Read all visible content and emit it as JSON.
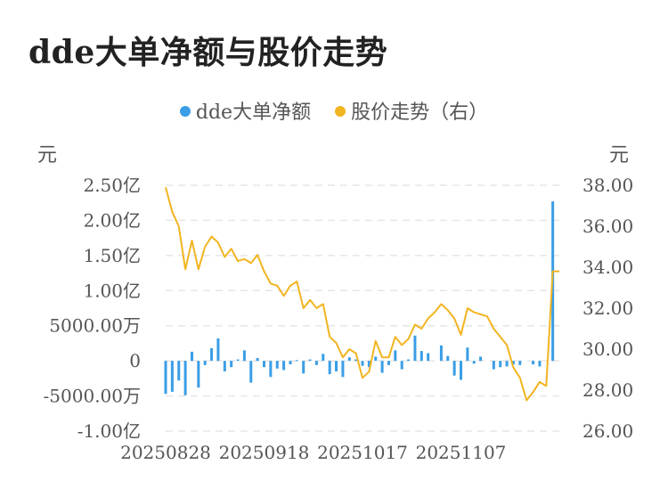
{
  "chart_data": {
    "type": "bar+line",
    "title": "dde大单净额与股价走势",
    "legend": [
      {
        "label": "dde大单净额",
        "color": "#3a9ee6"
      },
      {
        "label": "股价走势（右）",
        "color": "#f2b420"
      }
    ],
    "left_axis": {
      "unit": "元",
      "ticks": [
        "2.50亿",
        "2.00亿",
        "1.50亿",
        "1.00亿",
        "5000.00万",
        "0",
        "-5000.00万",
        "-1.00亿"
      ],
      "range_wan": [
        -10000,
        25000
      ]
    },
    "right_axis": {
      "unit": "元",
      "ticks": [
        "38.00",
        "36.00",
        "34.00",
        "32.00",
        "30.00",
        "28.00",
        "26.00"
      ],
      "range": [
        26,
        38
      ]
    },
    "x_tick_labels": [
      "20250828",
      "20250918",
      "20251017",
      "20251107"
    ],
    "x_tick_index": [
      0,
      15,
      30,
      45
    ],
    "series": [
      {
        "name": "dde大单净额",
        "kind": "bar",
        "unit": "万元",
        "values": [
          -4700,
          -4400,
          -2800,
          -4900,
          1300,
          -3800,
          -600,
          1800,
          3200,
          -1500,
          -900,
          200,
          1500,
          -3100,
          400,
          -900,
          -2300,
          -1100,
          -1300,
          -500,
          100,
          -1800,
          200,
          -600,
          1000,
          -1900,
          -1500,
          -2300,
          500,
          200,
          -700,
          -900,
          600,
          -1700,
          -600,
          1500,
          -1200,
          200,
          3600,
          1400,
          1100,
          0,
          2200,
          700,
          -2100,
          -2700,
          1900,
          -400,
          600,
          0,
          -1200,
          -900,
          -800,
          -500,
          -600,
          0,
          -500,
          -800,
          0,
          22700,
          0
        ]
      },
      {
        "name": "股价走势（右）",
        "kind": "line",
        "unit": "元",
        "values": [
          37.9,
          36.7,
          36.0,
          33.9,
          35.3,
          33.9,
          35.0,
          35.5,
          35.2,
          34.5,
          34.9,
          34.3,
          34.4,
          34.2,
          34.6,
          33.8,
          33.2,
          33.1,
          32.6,
          33.1,
          33.3,
          32.0,
          32.4,
          32.0,
          32.2,
          30.6,
          30.3,
          29.6,
          30.0,
          29.8,
          28.6,
          28.9,
          30.4,
          29.6,
          29.6,
          30.6,
          30.2,
          30.5,
          31.2,
          31.0,
          31.5,
          31.8,
          32.2,
          31.9,
          31.5,
          30.7,
          32.0,
          31.8,
          31.7,
          31.6,
          31.0,
          30.6,
          30.2,
          29.1,
          28.6,
          27.5,
          27.9,
          28.4,
          28.2,
          33.8,
          33.8
        ]
      }
    ]
  }
}
